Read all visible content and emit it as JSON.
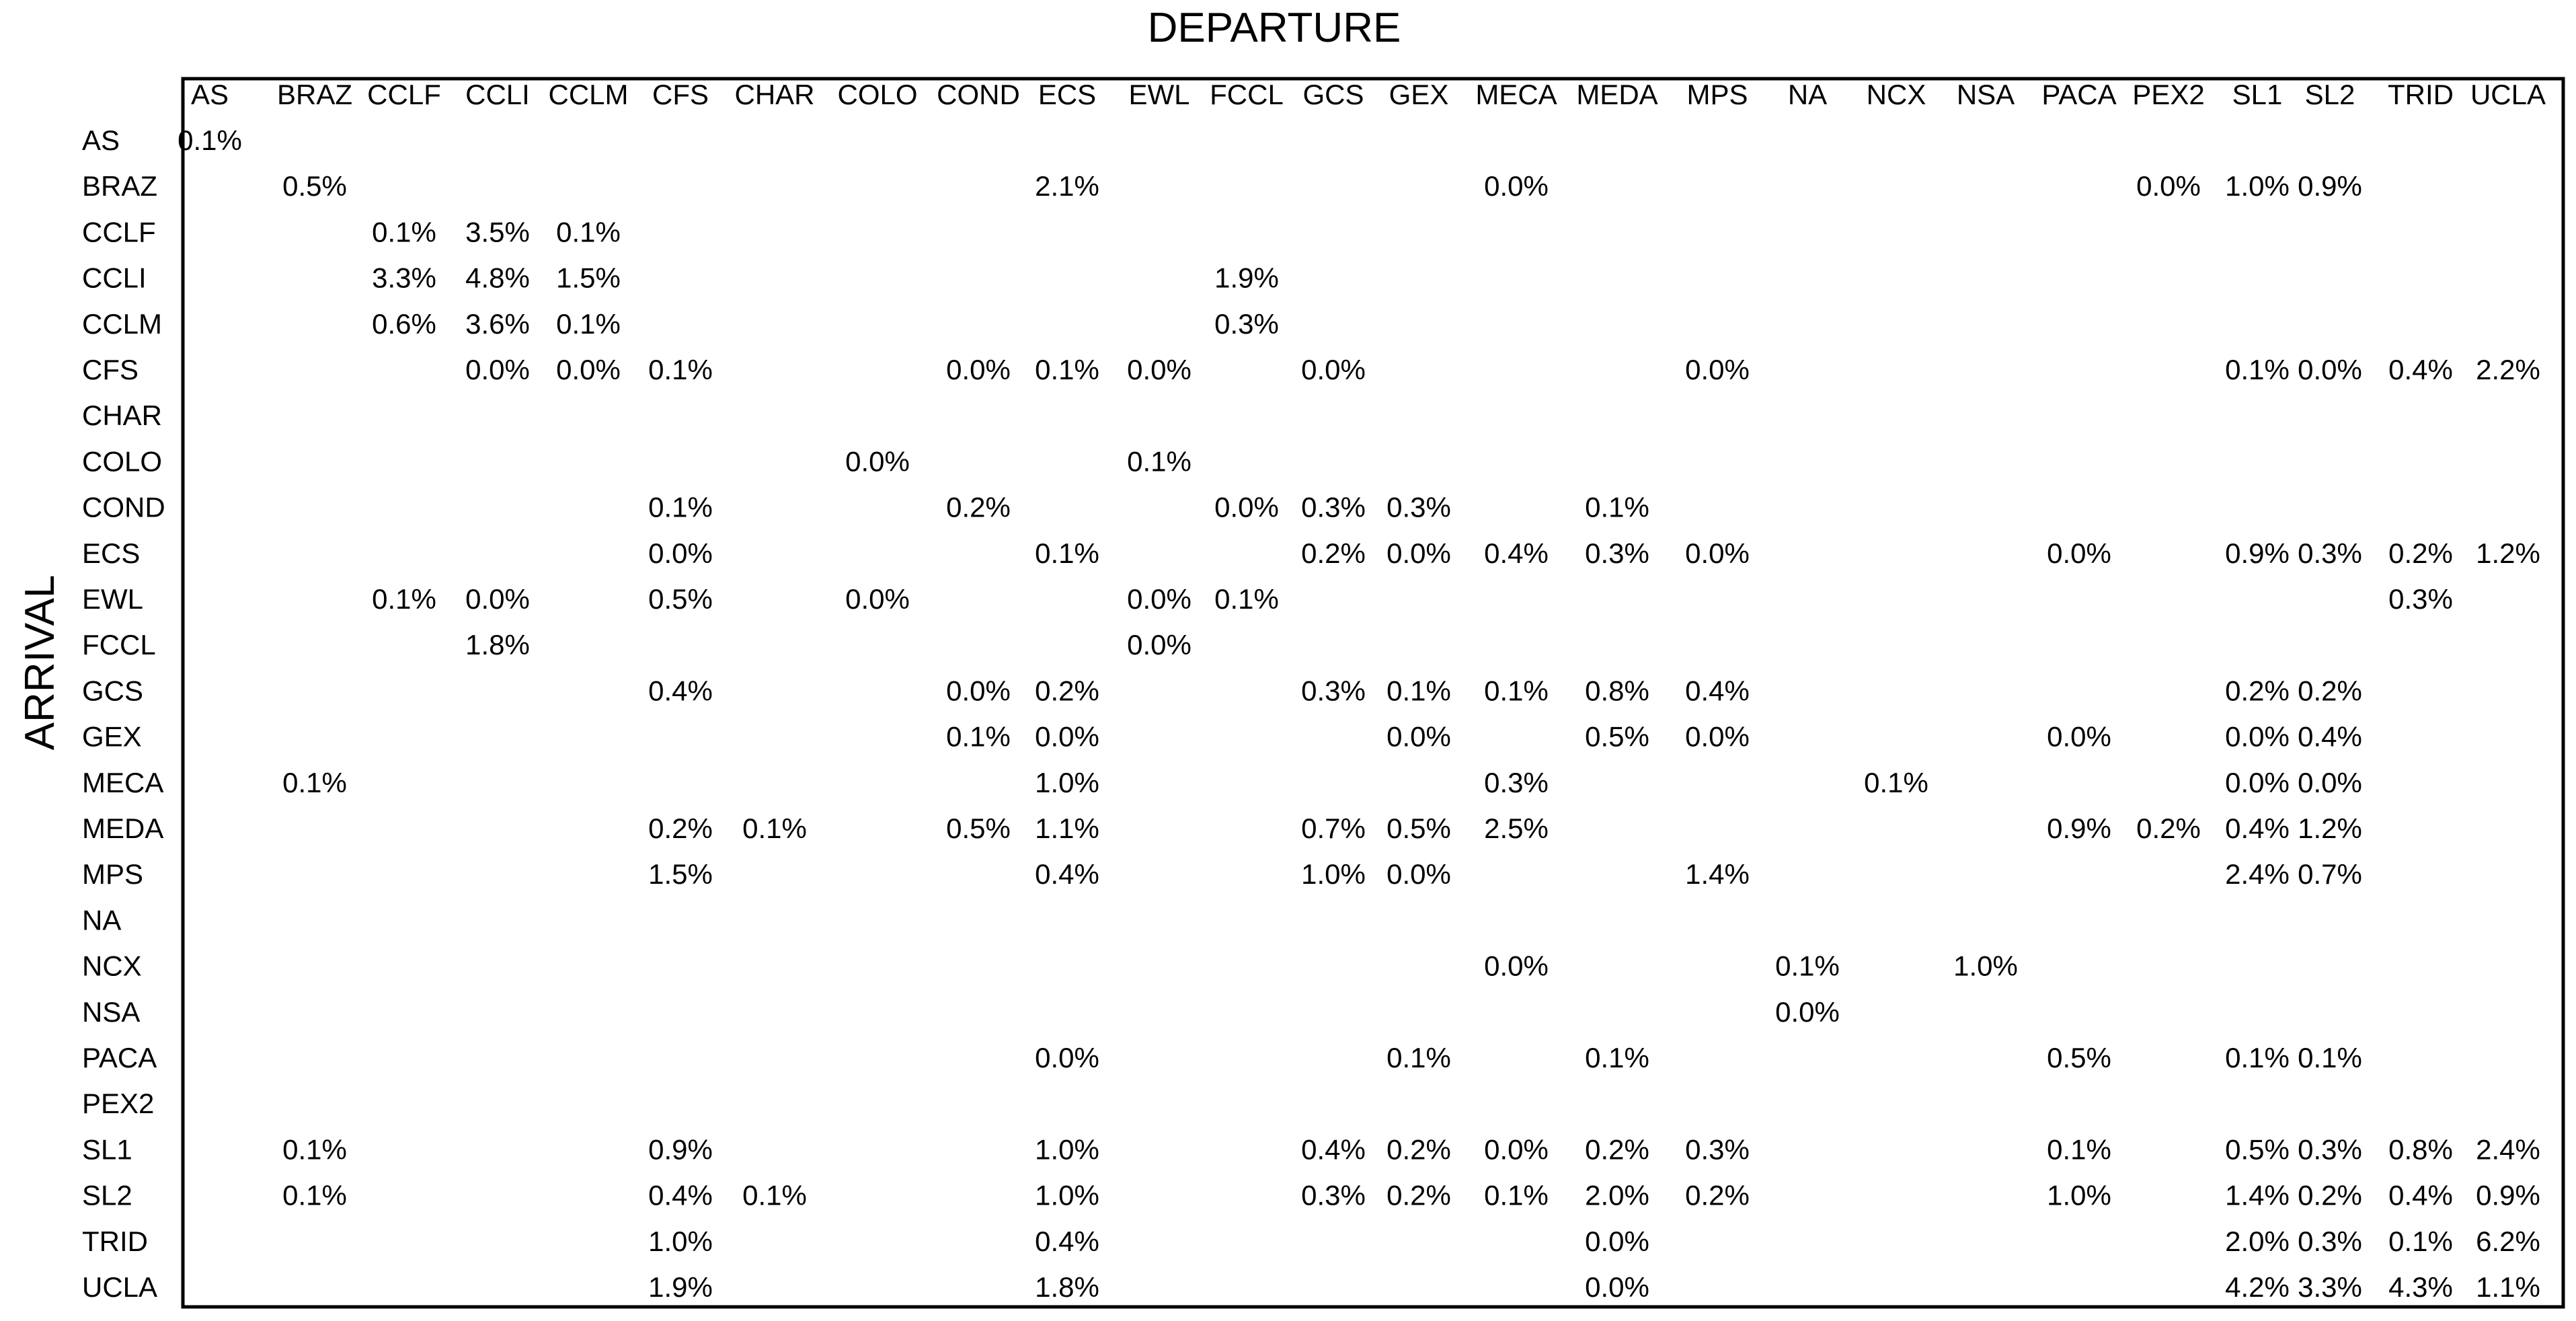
{
  "chart_data": {
    "type": "heatmap",
    "x_title": "DEPARTURE",
    "y_title": "ARRIVAL",
    "columns": [
      "AS",
      "BRAZ",
      "CCLF",
      "CCLI",
      "CCLM",
      "CFS",
      "CHAR",
      "COLO",
      "COND",
      "ECS",
      "EWL",
      "FCCL",
      "GCS",
      "GEX",
      "MECA",
      "MEDA",
      "MPS",
      "NA",
      "NCX",
      "NSA",
      "PACA",
      "PEX2",
      "SL1",
      "SL2",
      "TRID",
      "UCLA"
    ],
    "rows": [
      "AS",
      "BRAZ",
      "CCLF",
      "CCLI",
      "CCLM",
      "CFS",
      "CHAR",
      "COLO",
      "COND",
      "ECS",
      "EWL",
      "FCCL",
      "GCS",
      "GEX",
      "MECA",
      "MEDA",
      "MPS",
      "NA",
      "NCX",
      "NSA",
      "PACA",
      "PEX2",
      "SL1",
      "SL2",
      "TRID",
      "UCLA"
    ],
    "values": [
      [
        "0.1%",
        "",
        "",
        "",
        "",
        "",
        "",
        "",
        "",
        "",
        "",
        "",
        "",
        "",
        "",
        "",
        "",
        "",
        "",
        "",
        "",
        "",
        "",
        "",
        "",
        ""
      ],
      [
        "",
        "0.5%",
        "",
        "",
        "",
        "",
        "",
        "",
        "",
        "2.1%",
        "",
        "",
        "",
        "",
        "0.0%",
        "",
        "",
        "",
        "",
        "",
        "",
        "0.0%",
        "1.0%",
        "0.9%",
        "",
        ""
      ],
      [
        "",
        "",
        "0.1%",
        "3.5%",
        "0.1%",
        "",
        "",
        "",
        "",
        "",
        "",
        "",
        "",
        "",
        "",
        "",
        "",
        "",
        "",
        "",
        "",
        "",
        "",
        "",
        "",
        ""
      ],
      [
        "",
        "",
        "3.3%",
        "4.8%",
        "1.5%",
        "",
        "",
        "",
        "",
        "",
        "",
        "1.9%",
        "",
        "",
        "",
        "",
        "",
        "",
        "",
        "",
        "",
        "",
        "",
        "",
        "",
        ""
      ],
      [
        "",
        "",
        "0.6%",
        "3.6%",
        "0.1%",
        "",
        "",
        "",
        "",
        "",
        "",
        "0.3%",
        "",
        "",
        "",
        "",
        "",
        "",
        "",
        "",
        "",
        "",
        "",
        "",
        "",
        ""
      ],
      [
        "",
        "",
        "",
        "0.0%",
        "0.0%",
        "0.1%",
        "",
        "",
        "0.0%",
        "0.1%",
        "0.0%",
        "",
        "0.0%",
        "",
        "",
        "",
        "0.0%",
        "",
        "",
        "",
        "",
        "",
        "0.1%",
        "0.0%",
        "0.4%",
        "2.2%"
      ],
      [
        "",
        "",
        "",
        "",
        "",
        "",
        "",
        "",
        "",
        "",
        "",
        "",
        "",
        "",
        "",
        "",
        "",
        "",
        "",
        "",
        "",
        "",
        "",
        "",
        "",
        ""
      ],
      [
        "",
        "",
        "",
        "",
        "",
        "",
        "",
        "0.0%",
        "",
        "",
        "0.1%",
        "",
        "",
        "",
        "",
        "",
        "",
        "",
        "",
        "",
        "",
        "",
        "",
        "",
        "",
        ""
      ],
      [
        "",
        "",
        "",
        "",
        "",
        "0.1%",
        "",
        "",
        "0.2%",
        "",
        "",
        "0.0%",
        "0.3%",
        "0.3%",
        "",
        "0.1%",
        "",
        "",
        "",
        "",
        "",
        "",
        "",
        "",
        "",
        ""
      ],
      [
        "",
        "",
        "",
        "",
        "",
        "0.0%",
        "",
        "",
        "",
        "0.1%",
        "",
        "",
        "0.2%",
        "0.0%",
        "0.4%",
        "0.3%",
        "0.0%",
        "",
        "",
        "",
        "0.0%",
        "",
        "0.9%",
        "0.3%",
        "0.2%",
        "1.2%"
      ],
      [
        "",
        "",
        "0.1%",
        "0.0%",
        "",
        "0.5%",
        "",
        "0.0%",
        "",
        "",
        "0.0%",
        "0.1%",
        "",
        "",
        "",
        "",
        "",
        "",
        "",
        "",
        "",
        "",
        "",
        "",
        "0.3%",
        ""
      ],
      [
        "",
        "",
        "",
        "1.8%",
        "",
        "",
        "",
        "",
        "",
        "",
        "0.0%",
        "",
        "",
        "",
        "",
        "",
        "",
        "",
        "",
        "",
        "",
        "",
        "",
        "",
        "",
        ""
      ],
      [
        "",
        "",
        "",
        "",
        "",
        "0.4%",
        "",
        "",
        "0.0%",
        "0.2%",
        "",
        "",
        "0.3%",
        "0.1%",
        "0.1%",
        "0.8%",
        "0.4%",
        "",
        "",
        "",
        "",
        "",
        "0.2%",
        "0.2%",
        "",
        ""
      ],
      [
        "",
        "",
        "",
        "",
        "",
        "",
        "",
        "",
        "0.1%",
        "0.0%",
        "",
        "",
        "",
        "0.0%",
        "",
        "0.5%",
        "0.0%",
        "",
        "",
        "",
        "0.0%",
        "",
        "0.0%",
        "0.4%",
        "",
        ""
      ],
      [
        "",
        "0.1%",
        "",
        "",
        "",
        "",
        "",
        "",
        "",
        "1.0%",
        "",
        "",
        "",
        "",
        "0.3%",
        "",
        "",
        "",
        "0.1%",
        "",
        "",
        "",
        "0.0%",
        "0.0%",
        "",
        ""
      ],
      [
        "",
        "",
        "",
        "",
        "",
        "0.2%",
        "0.1%",
        "",
        "0.5%",
        "1.1%",
        "",
        "",
        "0.7%",
        "0.5%",
        "2.5%",
        "",
        "",
        "",
        "",
        "",
        "0.9%",
        "0.2%",
        "0.4%",
        "1.2%",
        "",
        ""
      ],
      [
        "",
        "",
        "",
        "",
        "",
        "1.5%",
        "",
        "",
        "",
        "0.4%",
        "",
        "",
        "1.0%",
        "0.0%",
        "",
        "",
        "1.4%",
        "",
        "",
        "",
        "",
        "",
        "2.4%",
        "0.7%",
        "",
        ""
      ],
      [
        "",
        "",
        "",
        "",
        "",
        "",
        "",
        "",
        "",
        "",
        "",
        "",
        "",
        "",
        "",
        "",
        "",
        "",
        "",
        "",
        "",
        "",
        "",
        "",
        "",
        ""
      ],
      [
        "",
        "",
        "",
        "",
        "",
        "",
        "",
        "",
        "",
        "",
        "",
        "",
        "",
        "",
        "0.0%",
        "",
        "",
        "0.1%",
        "",
        "1.0%",
        "",
        "",
        "",
        "",
        "",
        ""
      ],
      [
        "",
        "",
        "",
        "",
        "",
        "",
        "",
        "",
        "",
        "",
        "",
        "",
        "",
        "",
        "",
        "",
        "",
        "0.0%",
        "",
        "",
        "",
        "",
        "",
        "",
        "",
        ""
      ],
      [
        "",
        "",
        "",
        "",
        "",
        "",
        "",
        "",
        "",
        "0.0%",
        "",
        "",
        "",
        "0.1%",
        "",
        "0.1%",
        "",
        "",
        "",
        "",
        "0.5%",
        "",
        "0.1%",
        "0.1%",
        "",
        ""
      ],
      [
        "",
        "",
        "",
        "",
        "",
        "",
        "",
        "",
        "",
        "",
        "",
        "",
        "",
        "",
        "",
        "",
        "",
        "",
        "",
        "",
        "",
        "",
        "",
        "",
        "",
        ""
      ],
      [
        "",
        "0.1%",
        "",
        "",
        "",
        "0.9%",
        "",
        "",
        "",
        "1.0%",
        "",
        "",
        "0.4%",
        "0.2%",
        "0.0%",
        "0.2%",
        "0.3%",
        "",
        "",
        "",
        "0.1%",
        "",
        "0.5%",
        "0.3%",
        "0.8%",
        "2.4%"
      ],
      [
        "",
        "0.1%",
        "",
        "",
        "",
        "0.4%",
        "0.1%",
        "",
        "",
        "1.0%",
        "",
        "",
        "0.3%",
        "0.2%",
        "0.1%",
        "2.0%",
        "0.2%",
        "",
        "",
        "",
        "1.0%",
        "",
        "1.4%",
        "0.2%",
        "0.4%",
        "0.9%"
      ],
      [
        "",
        "",
        "",
        "",
        "",
        "1.0%",
        "",
        "",
        "",
        "0.4%",
        "",
        "",
        "",
        "",
        "",
        "0.0%",
        "",
        "",
        "",
        "",
        "",
        "",
        "2.0%",
        "0.3%",
        "0.1%",
        "6.2%"
      ],
      [
        "",
        "",
        "",
        "",
        "",
        "1.9%",
        "",
        "",
        "",
        "1.8%",
        "",
        "",
        "",
        "",
        "",
        "0.0%",
        "",
        "",
        "",
        "",
        "",
        "",
        "4.2%",
        "3.3%",
        "4.3%",
        "1.1%"
      ]
    ]
  }
}
